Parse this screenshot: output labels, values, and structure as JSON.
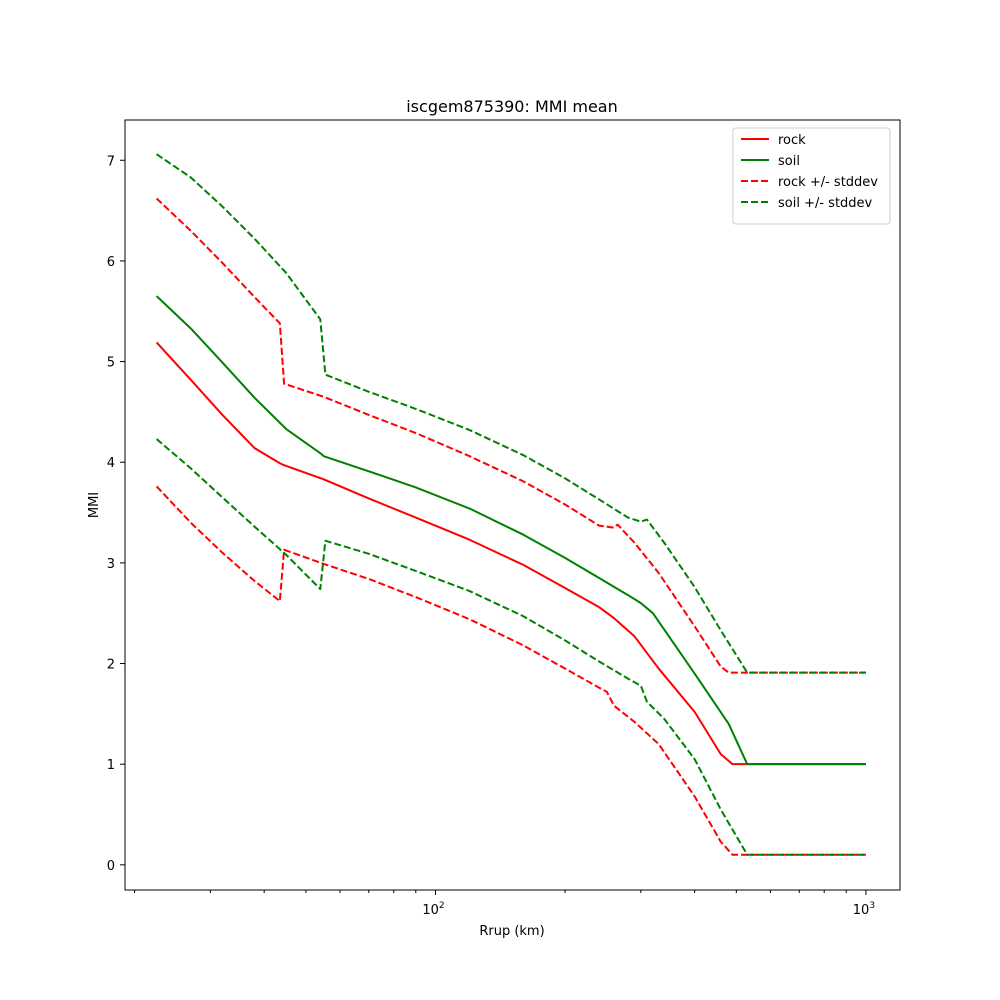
{
  "chart_data": {
    "type": "line",
    "title": "iscgem875390: MMI mean",
    "xlabel": "Rrup (km)",
    "ylabel": "MMI",
    "xscale": "log",
    "xlim": [
      19,
      1200
    ],
    "ylim": [
      -0.25,
      7.4
    ],
    "x_tick_labels": [
      {
        "x": 100,
        "base": "10",
        "exp": "2"
      },
      {
        "x": 1000,
        "base": "10",
        "exp": "3"
      }
    ],
    "y_ticks": [
      0,
      1,
      2,
      3,
      4,
      5,
      6,
      7
    ],
    "grid": false,
    "legend_position": "top-right",
    "series": [
      {
        "name": "rock",
        "color": "#ff0000",
        "dash": "solid",
        "points": [
          [
            22.5,
            5.19
          ],
          [
            27,
            4.82
          ],
          [
            32,
            4.47
          ],
          [
            38,
            4.14
          ],
          [
            43.5,
            3.99
          ],
          [
            44.5,
            3.97
          ],
          [
            55,
            3.83
          ],
          [
            70,
            3.64
          ],
          [
            90,
            3.45
          ],
          [
            120,
            3.23
          ],
          [
            160,
            2.98
          ],
          [
            200,
            2.75
          ],
          [
            240,
            2.56
          ],
          [
            260,
            2.45
          ],
          [
            290,
            2.27
          ],
          [
            330,
            1.95
          ],
          [
            400,
            1.52
          ],
          [
            460,
            1.1
          ],
          [
            490,
            1.0
          ],
          [
            520,
            1.0
          ],
          [
            1000,
            1.0
          ]
        ]
      },
      {
        "name": "soil",
        "color": "#008000",
        "dash": "solid",
        "points": [
          [
            22.5,
            5.65
          ],
          [
            27,
            5.33
          ],
          [
            32,
            4.99
          ],
          [
            38,
            4.64
          ],
          [
            45,
            4.33
          ],
          [
            54,
            4.09
          ],
          [
            55,
            4.06
          ],
          [
            70,
            3.91
          ],
          [
            90,
            3.75
          ],
          [
            120,
            3.54
          ],
          [
            160,
            3.28
          ],
          [
            200,
            3.05
          ],
          [
            240,
            2.85
          ],
          [
            280,
            2.68
          ],
          [
            300,
            2.6
          ],
          [
            320,
            2.5
          ],
          [
            400,
            1.9
          ],
          [
            480,
            1.4
          ],
          [
            530,
            1.0
          ],
          [
            1000,
            1.0
          ]
        ]
      },
      {
        "name": "rock +/- stddev",
        "color": "#ff0000",
        "dash": "dashed",
        "points": [
          [
            22.5,
            6.62
          ],
          [
            27,
            6.3
          ],
          [
            32,
            5.98
          ],
          [
            38,
            5.64
          ],
          [
            43.5,
            5.38
          ],
          [
            44.5,
            4.78
          ],
          [
            55,
            4.65
          ],
          [
            70,
            4.47
          ],
          [
            90,
            4.29
          ],
          [
            120,
            4.06
          ],
          [
            160,
            3.81
          ],
          [
            200,
            3.58
          ],
          [
            240,
            3.37
          ],
          [
            260,
            3.35
          ],
          [
            265,
            3.38
          ],
          [
            290,
            3.2
          ],
          [
            330,
            2.9
          ],
          [
            400,
            2.37
          ],
          [
            460,
            1.97
          ],
          [
            480,
            1.91
          ],
          [
            1000,
            1.91
          ]
        ]
      },
      {
        "name": "",
        "color": "#ff0000",
        "dash": "dashed",
        "points": [
          [
            22.5,
            3.76
          ],
          [
            27,
            3.4
          ],
          [
            32,
            3.1
          ],
          [
            38,
            2.82
          ],
          [
            43.5,
            2.62
          ],
          [
            44.5,
            3.13
          ],
          [
            55,
            2.99
          ],
          [
            70,
            2.84
          ],
          [
            90,
            2.66
          ],
          [
            120,
            2.44
          ],
          [
            160,
            2.18
          ],
          [
            200,
            1.95
          ],
          [
            240,
            1.76
          ],
          [
            250,
            1.72
          ],
          [
            260,
            1.58
          ],
          [
            290,
            1.42
          ],
          [
            330,
            1.2
          ],
          [
            400,
            0.68
          ],
          [
            460,
            0.23
          ],
          [
            490,
            0.1
          ],
          [
            520,
            0.1
          ],
          [
            1000,
            0.1
          ]
        ]
      },
      {
        "name": "soil +/- stddev",
        "color": "#008000",
        "dash": "dashed",
        "points": [
          [
            22.5,
            7.06
          ],
          [
            27,
            6.83
          ],
          [
            32,
            6.54
          ],
          [
            38,
            6.22
          ],
          [
            45,
            5.88
          ],
          [
            54,
            5.42
          ],
          [
            55.5,
            4.87
          ],
          [
            70,
            4.7
          ],
          [
            90,
            4.53
          ],
          [
            120,
            4.32
          ],
          [
            160,
            4.07
          ],
          [
            200,
            3.84
          ],
          [
            240,
            3.63
          ],
          [
            280,
            3.45
          ],
          [
            300,
            3.41
          ],
          [
            310,
            3.43
          ],
          [
            340,
            3.2
          ],
          [
            400,
            2.76
          ],
          [
            460,
            2.33
          ],
          [
            530,
            1.91
          ],
          [
            1000,
            1.91
          ]
        ]
      },
      {
        "name": "",
        "color": "#008000",
        "dash": "dashed",
        "points": [
          [
            22.5,
            4.23
          ],
          [
            27,
            3.94
          ],
          [
            32,
            3.65
          ],
          [
            38,
            3.36
          ],
          [
            45,
            3.08
          ],
          [
            54,
            2.74
          ],
          [
            55.5,
            3.22
          ],
          [
            70,
            3.09
          ],
          [
            90,
            2.92
          ],
          [
            120,
            2.72
          ],
          [
            160,
            2.47
          ],
          [
            200,
            2.23
          ],
          [
            240,
            2.02
          ],
          [
            280,
            1.85
          ],
          [
            300,
            1.78
          ],
          [
            310,
            1.62
          ],
          [
            340,
            1.45
          ],
          [
            400,
            1.05
          ],
          [
            460,
            0.55
          ],
          [
            530,
            0.1
          ],
          [
            1000,
            0.1
          ]
        ]
      }
    ]
  }
}
